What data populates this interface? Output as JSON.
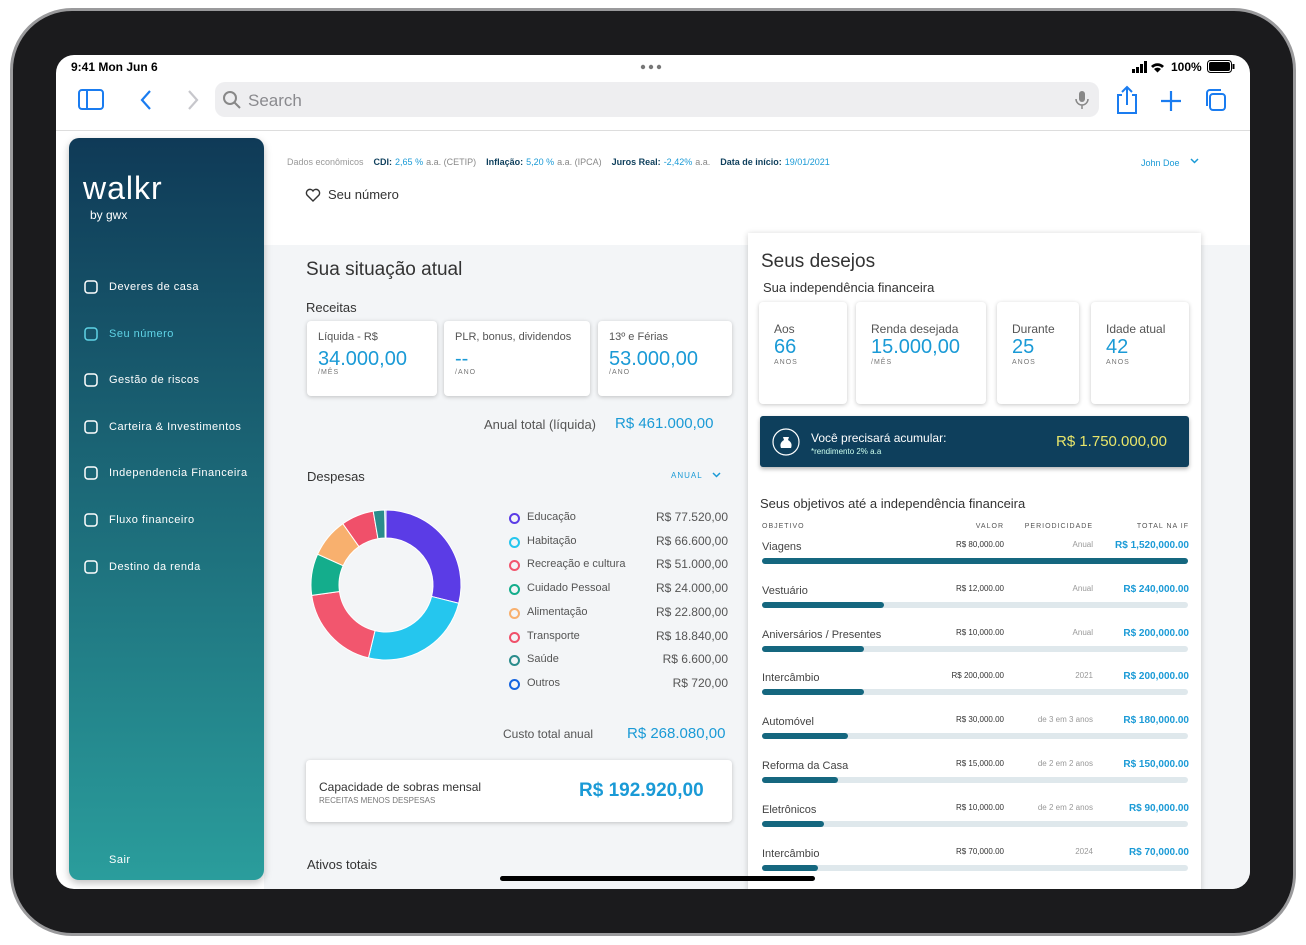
{
  "status_bar": {
    "time": "9:41  Mon Jun 6",
    "battery": "100%"
  },
  "browser": {
    "search": "Search"
  },
  "sidebar": {
    "brand": "walkr",
    "byline": "by gwx",
    "menu": [
      "Deveres de casa",
      "Seu número",
      "Gestão de riscos",
      "Carteira & Investimentos",
      "Independencia Financeira",
      "Fluxo financeiro",
      "Destino da renda"
    ],
    "logout": "Sair"
  },
  "economics": {
    "label": "Dados econômicos",
    "items": [
      {
        "name": "CDI:",
        "value": "2,65 %",
        "unit": "a.a. (CETIP)"
      },
      {
        "name": "Inflação:",
        "value": "5,20 %",
        "unit": "a.a. (IPCA)"
      },
      {
        "name": "Juros Real:",
        "value": "-2,42%",
        "unit": "a.a."
      },
      {
        "name": "Data de início:",
        "value": "19/01/2021"
      }
    ]
  },
  "user": "John Doe",
  "page_tab": "Seu número",
  "situacao": {
    "title": "Sua situação atual",
    "receitas_title": "Receitas",
    "cards": [
      {
        "label": "Líquida - R$",
        "value": "34.000,00",
        "unit": "/MÊS"
      },
      {
        "label": "PLR, bonus, dividendos",
        "value": "--",
        "unit": "/ANO"
      },
      {
        "label": "13º e Férias",
        "value": "53.000,00",
        "unit": "/ANO"
      }
    ],
    "annual_label": "Anual total (líquida)",
    "annual_value": "R$ 461.000,00",
    "despesas_title": "Despesas",
    "period": "ANUAL",
    "custo_label": "Custo total anual",
    "custo_value": "R$ 268.080,00",
    "capacidade_title": "Capacidade de sobras mensal",
    "capacidade_sub": "RECEITAS MENOS DESPESAS",
    "capacidade_value": "R$ 192.920,00",
    "ativos_title": "Ativos totais"
  },
  "desejos": {
    "title": "Seus desejos",
    "subtitle": "Sua independência financeira",
    "cards": [
      {
        "label": "Aos",
        "value": "66",
        "unit": "ANOS"
      },
      {
        "label": "Renda desejada",
        "value": "15.000,00",
        "unit": "/MÊS"
      },
      {
        "label": "Durante",
        "value": "25",
        "unit": "ANOS"
      },
      {
        "label": "Idade atual",
        "value": "42",
        "unit": "ANOS"
      }
    ],
    "acumular_label": "Você precisará acumular:",
    "acumular_note": "*rendimento 2% a.a",
    "acumular_value": "R$ 1.750.000,00",
    "objetivos_title": "Seus objetivos até a independência financeira",
    "columns": [
      "OBJETIVO",
      "VALOR",
      "PERIODICIDADE",
      "TOTAL NA IF"
    ],
    "rows": [
      [
        "Viagens",
        "R$ 80,000.00",
        "Anual",
        "R$ 1,520,000.00"
      ],
      [
        "Vestuário",
        "R$ 12,000.00",
        "Anual",
        "R$ 240,000.00"
      ],
      [
        "Aniversários / Presentes",
        "R$ 10,000.00",
        "Anual",
        "R$ 200,000.00"
      ],
      [
        "Intercâmbio",
        "R$ 200,000.00",
        "2021",
        "R$ 200,000.00"
      ],
      [
        "Automóvel",
        "R$ 30,000.00",
        "de 3 em 3 anos",
        "R$ 180,000.00"
      ],
      [
        "Reforma da Casa",
        "R$ 15,000.00",
        "de 2 em 2 anos",
        "R$ 150,000.00"
      ],
      [
        "Eletrônicos",
        "R$ 10,000.00",
        "de 2 em 2 anos",
        "R$ 90,000.00"
      ],
      [
        "Intercâmbio",
        "R$ 70,000.00",
        "2024",
        "R$ 70,000.00"
      ]
    ]
  },
  "chart_data": {
    "type": "donut",
    "categories": [
      "Educação",
      "Habitação",
      "Recreação e cultura",
      "Cuidado Pessoal",
      "Alimentação",
      "Transporte",
      "Saúde",
      "Outros"
    ],
    "values": [
      77520,
      66600,
      51000,
      24000,
      22800,
      18840,
      6600,
      720
    ],
    "value_labels": [
      "R$ 77.520,00",
      "R$ 66.600,00",
      "R$ 51.000,00",
      "R$ 24.000,00",
      "R$ 22.800,00",
      "R$ 18.840,00",
      "R$ 6.600,00",
      "R$ 720,00"
    ],
    "colors": [
      "#5b3ce6",
      "#25c6ee",
      "#f2566e",
      "#14ad8c",
      "#f8b06e",
      "#f0506a",
      "#2a8c8c",
      "#1665e0"
    ]
  }
}
